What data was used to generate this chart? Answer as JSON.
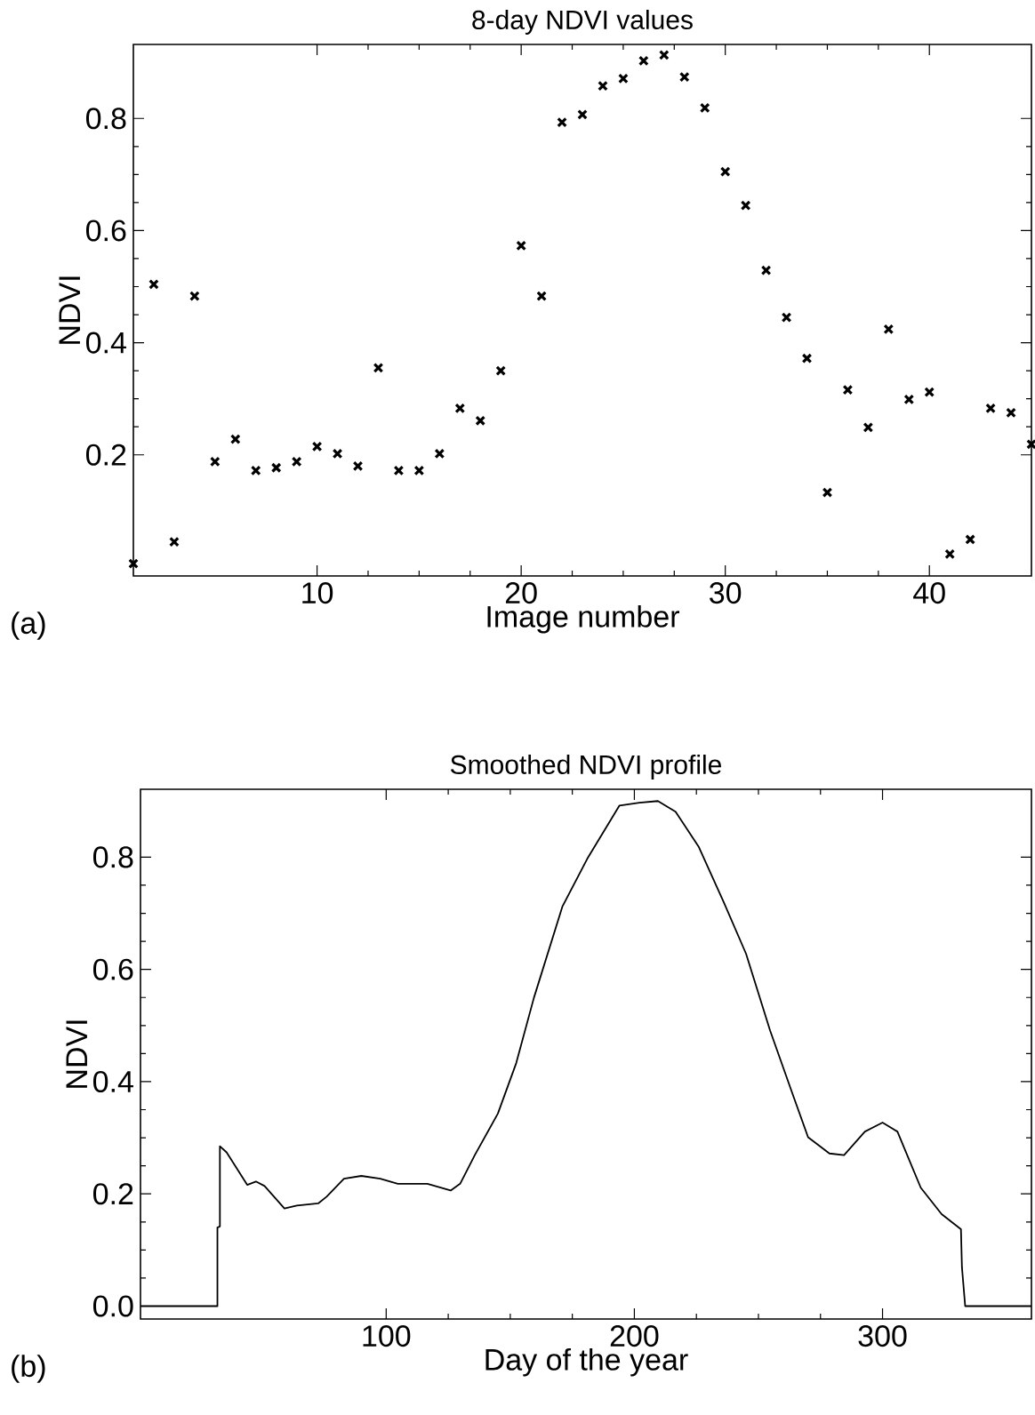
{
  "chart_data": [
    {
      "type": "scatter",
      "title": "8-day NDVI values",
      "xlabel": "Image number",
      "ylabel": "NDVI",
      "annotations": [
        "(a)"
      ],
      "marker": "cross",
      "color": "#000000",
      "x": [
        1,
        2,
        3,
        4,
        5,
        6,
        7,
        8,
        9,
        10,
        11,
        12,
        13,
        14,
        15,
        16,
        17,
        18,
        19,
        20,
        21,
        22,
        23,
        24,
        25,
        26,
        27,
        28,
        29,
        30,
        31,
        32,
        33,
        34,
        35,
        36,
        37,
        38,
        39,
        40,
        41,
        42,
        43,
        44,
        45
      ],
      "values": [
        0.006,
        0.504,
        0.045,
        0.483,
        0.188,
        0.228,
        0.172,
        0.177,
        0.188,
        0.215,
        0.202,
        0.18,
        0.355,
        0.172,
        0.172,
        0.202,
        0.283,
        0.261,
        0.35,
        0.573,
        0.483,
        0.793,
        0.807,
        0.858,
        0.871,
        0.903,
        0.913,
        0.874,
        0.819,
        0.705,
        0.645,
        0.529,
        0.445,
        0.372,
        0.133,
        0.316,
        0.249,
        0.424,
        0.299,
        0.312,
        0.023,
        0.049,
        0.283,
        0.275,
        0.219
      ],
      "xlim": [
        1,
        45
      ],
      "ylim": [
        -0.016,
        0.932
      ],
      "xticks": [
        10,
        20,
        30,
        40
      ],
      "yticks": [
        0.2,
        0.4,
        0.6,
        0.8
      ]
    },
    {
      "type": "line",
      "title": "Smoothed NDVI profile",
      "xlabel": "Day of the year",
      "ylabel": "NDVI",
      "annotations": [
        "(b)"
      ],
      "color": "#000000",
      "x": [
        1,
        32,
        32,
        33,
        33,
        35.7,
        44,
        47.5,
        51,
        59,
        64,
        72.6,
        76,
        83,
        90,
        97.6,
        104.7,
        116.6,
        126,
        129.8,
        135.7,
        145,
        152.4,
        159.5,
        171,
        181,
        194,
        202,
        209.5,
        216.6,
        226,
        235.7,
        245,
        254.7,
        264,
        270,
        278.6,
        284.5,
        292.9,
        300,
        306,
        315.4,
        323.8,
        331.6,
        332,
        333.3,
        360
      ],
      "values": [
        0,
        0,
        0.14,
        0.142,
        0.285,
        0.274,
        0.216,
        0.222,
        0.214,
        0.174,
        0.179,
        0.183,
        0.195,
        0.227,
        0.232,
        0.227,
        0.218,
        0.218,
        0.206,
        0.218,
        0.269,
        0.343,
        0.433,
        0.549,
        0.712,
        0.797,
        0.892,
        0.897,
        0.9,
        0.881,
        0.818,
        0.723,
        0.628,
        0.491,
        0.375,
        0.301,
        0.272,
        0.269,
        0.311,
        0.327,
        0.311,
        0.211,
        0.164,
        0.137,
        0.069,
        0,
        0
      ],
      "xlim": [
        1,
        360
      ],
      "ylim": [
        -0.023,
        0.921
      ],
      "xticks": [
        100,
        200,
        300
      ],
      "yticks": [
        {
          "value": 0,
          "label": "0.0"
        },
        0.2,
        0.4,
        0.6,
        0.8
      ]
    }
  ]
}
